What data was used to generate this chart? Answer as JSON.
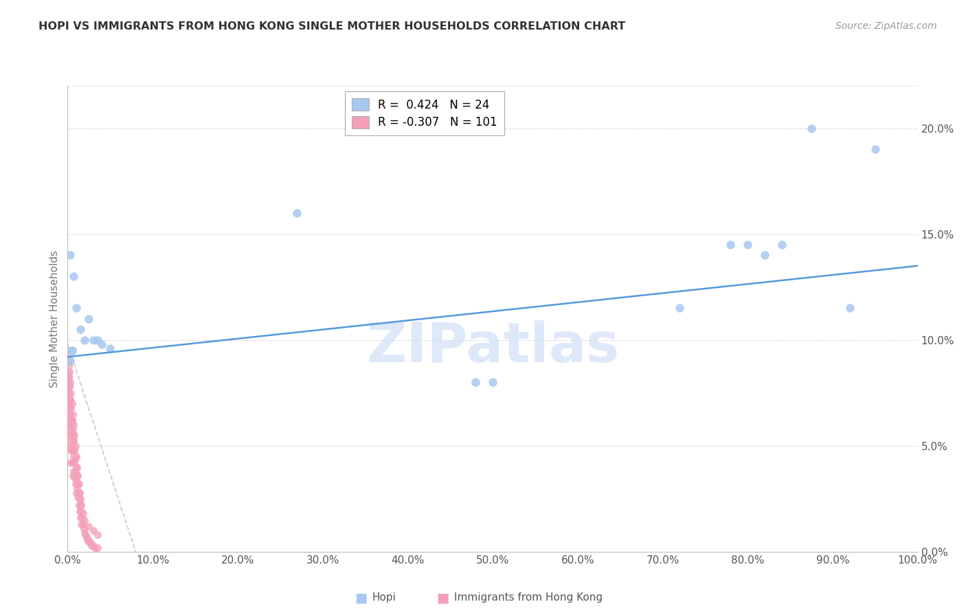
{
  "title": "HOPI VS IMMIGRANTS FROM HONG KONG SINGLE MOTHER HOUSEHOLDS CORRELATION CHART",
  "source": "Source: ZipAtlas.com",
  "ylabel": "Single Mother Households",
  "watermark": "ZIPatlas",
  "legend_hopi_r": "0.424",
  "legend_hopi_n": "24",
  "legend_hk_r": "-0.307",
  "legend_hk_n": "101",
  "hopi_color": "#a8c8f0",
  "hk_color": "#f4a0b8",
  "trend_hopi_color": "#5599dd",
  "trend_hk_color": "#cccccc",
  "xlim": [
    0,
    1.0
  ],
  "ylim": [
    0,
    0.22
  ],
  "hopi_x": [
    0.003,
    0.005,
    0.007,
    0.01,
    0.015,
    0.02,
    0.025,
    0.03,
    0.035,
    0.04,
    0.05,
    0.27,
    0.5,
    0.72,
    0.78,
    0.8,
    0.82,
    0.84,
    0.875,
    0.92,
    0.95,
    0.003,
    0.005,
    0.48
  ],
  "hopi_y": [
    0.14,
    0.095,
    0.13,
    0.115,
    0.105,
    0.1,
    0.11,
    0.1,
    0.1,
    0.098,
    0.096,
    0.16,
    0.08,
    0.115,
    0.145,
    0.145,
    0.14,
    0.145,
    0.2,
    0.115,
    0.19,
    0.09,
    0.095,
    0.08
  ],
  "hk_x": [
    0.0,
    0.0,
    0.0,
    0.0,
    0.0,
    0.0,
    0.001,
    0.001,
    0.001,
    0.001,
    0.002,
    0.002,
    0.002,
    0.002,
    0.003,
    0.003,
    0.003,
    0.003,
    0.004,
    0.004,
    0.004,
    0.004,
    0.004,
    0.005,
    0.005,
    0.005,
    0.005,
    0.006,
    0.006,
    0.006,
    0.006,
    0.007,
    0.007,
    0.007,
    0.008,
    0.008,
    0.008,
    0.009,
    0.009,
    0.009,
    0.01,
    0.01,
    0.01,
    0.011,
    0.011,
    0.012,
    0.012,
    0.013,
    0.013,
    0.014,
    0.014,
    0.015,
    0.015,
    0.016,
    0.016,
    0.017,
    0.018,
    0.019,
    0.02,
    0.021,
    0.022,
    0.023,
    0.024,
    0.025,
    0.026,
    0.027,
    0.028,
    0.03,
    0.032,
    0.035,
    0.0,
    0.0,
    0.001,
    0.001,
    0.002,
    0.002,
    0.003,
    0.003,
    0.004,
    0.004,
    0.005,
    0.005,
    0.006,
    0.006,
    0.007,
    0.007,
    0.008,
    0.008,
    0.009,
    0.01,
    0.011,
    0.012,
    0.013,
    0.014,
    0.015,
    0.016,
    0.018,
    0.02,
    0.025,
    0.03,
    0.035
  ],
  "hk_y": [
    0.08,
    0.07,
    0.065,
    0.06,
    0.055,
    0.05,
    0.088,
    0.082,
    0.075,
    0.07,
    0.078,
    0.072,
    0.065,
    0.06,
    0.072,
    0.065,
    0.058,
    0.052,
    0.068,
    0.062,
    0.055,
    0.048,
    0.042,
    0.062,
    0.055,
    0.048,
    0.042,
    0.056,
    0.049,
    0.042,
    0.036,
    0.052,
    0.045,
    0.038,
    0.048,
    0.042,
    0.035,
    0.044,
    0.038,
    0.032,
    0.04,
    0.034,
    0.028,
    0.036,
    0.03,
    0.032,
    0.026,
    0.028,
    0.022,
    0.025,
    0.019,
    0.022,
    0.016,
    0.019,
    0.013,
    0.016,
    0.013,
    0.011,
    0.009,
    0.008,
    0.007,
    0.006,
    0.005,
    0.005,
    0.004,
    0.004,
    0.003,
    0.003,
    0.002,
    0.002,
    0.093,
    0.085,
    0.09,
    0.083,
    0.085,
    0.078,
    0.08,
    0.072,
    0.075,
    0.068,
    0.07,
    0.062,
    0.065,
    0.058,
    0.06,
    0.053,
    0.055,
    0.048,
    0.05,
    0.045,
    0.04,
    0.036,
    0.032,
    0.028,
    0.025,
    0.022,
    0.018,
    0.015,
    0.012,
    0.01,
    0.008
  ],
  "hopi_trend_x": [
    0.0,
    1.0
  ],
  "hopi_trend_y": [
    0.092,
    0.135
  ],
  "hk_trend_x": [
    0.0,
    0.08
  ],
  "hk_trend_y": [
    0.098,
    0.0
  ]
}
